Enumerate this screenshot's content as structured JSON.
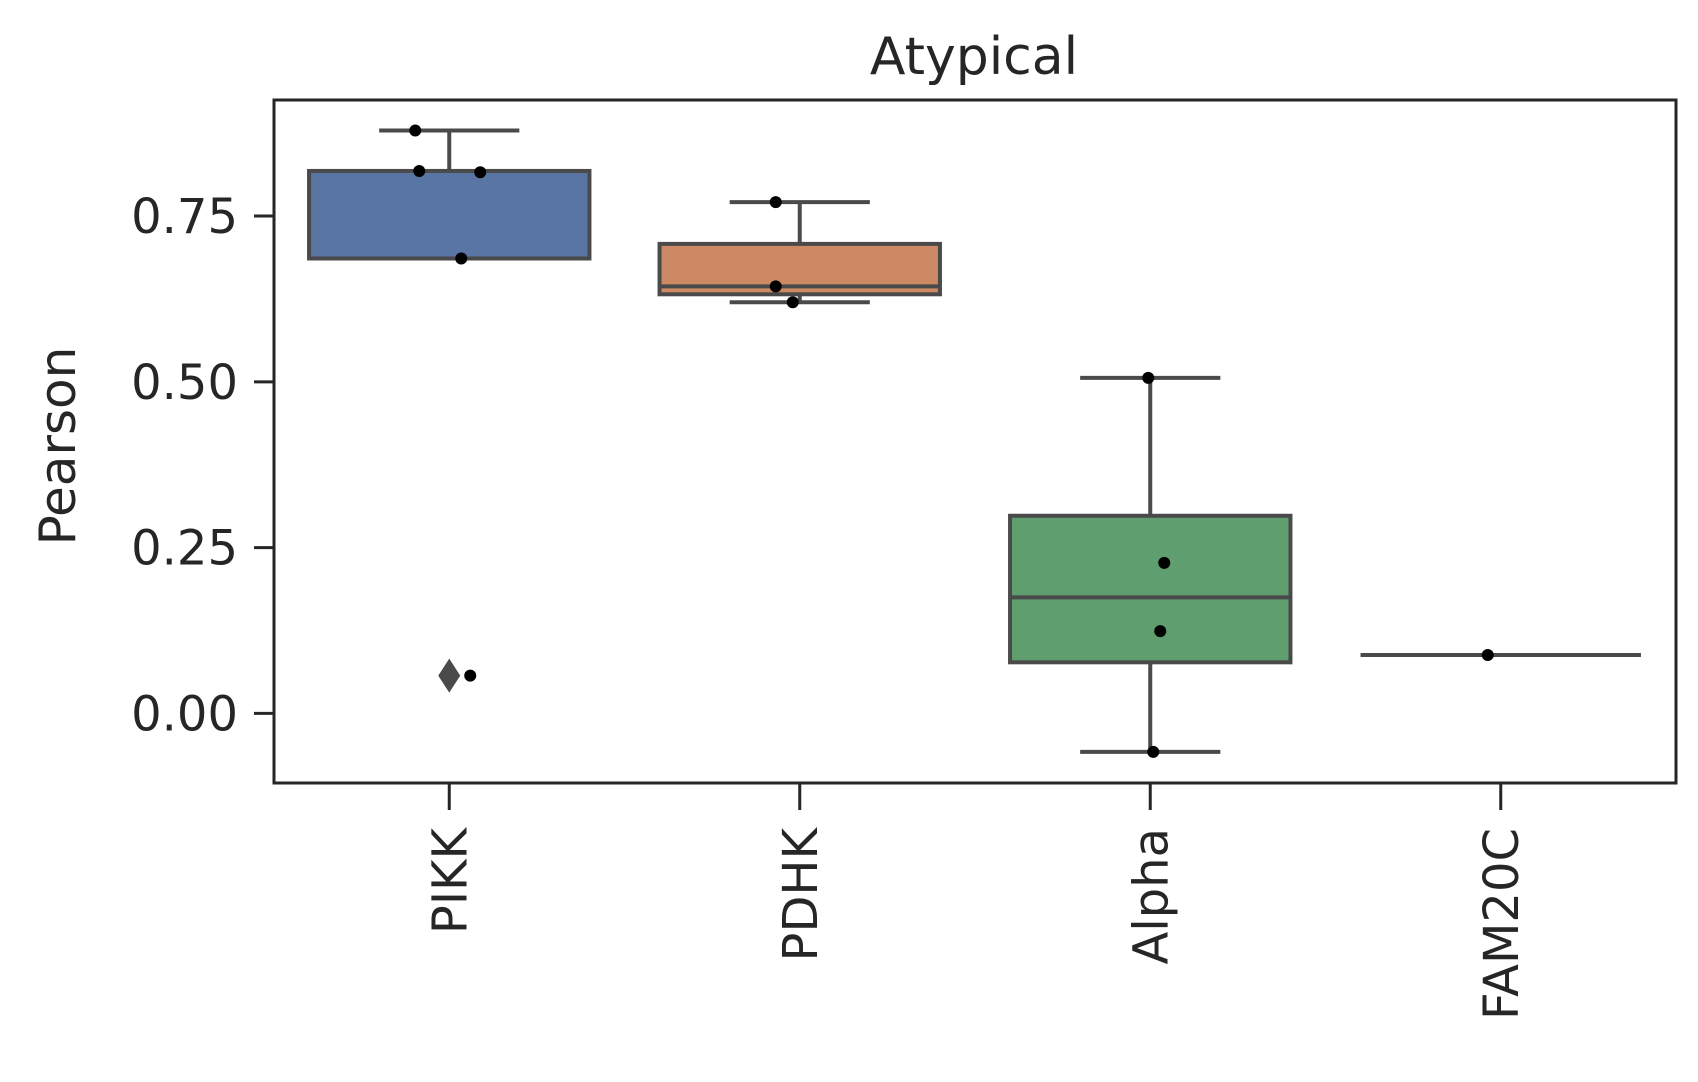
{
  "chart_data": {
    "type": "box",
    "title": "Atypical",
    "xlabel": "",
    "ylabel": "Pearson",
    "ylim": [
      -0.105,
      0.925
    ],
    "yticks": [
      0.0,
      0.25,
      0.5,
      0.75
    ],
    "ytick_labels": [
      "0.00",
      "0.25",
      "0.50",
      "0.75"
    ],
    "grid": false,
    "legend": "none",
    "categories": [
      "PIKK",
      "PDHK",
      "Alpha",
      "FAM20C"
    ],
    "boxes": [
      {
        "category": "PIKK",
        "color": "#5975a4",
        "q1": 0.686,
        "median": 0.686,
        "q3": 0.818,
        "whisker_low": 0.686,
        "whisker_high": 0.879,
        "outliers": [
          0.057
        ],
        "points": [
          0.879,
          0.818,
          0.816,
          0.686,
          0.057
        ]
      },
      {
        "category": "PDHK",
        "color": "#cc8963",
        "q1": 0.632,
        "median": 0.644,
        "q3": 0.708,
        "whisker_low": 0.62,
        "whisker_high": 0.771,
        "outliers": [],
        "points": [
          0.771,
          0.644,
          0.62
        ]
      },
      {
        "category": "Alpha",
        "color": "#5f9e6e",
        "q1": 0.077,
        "median": 0.175,
        "q3": 0.298,
        "whisker_low": -0.058,
        "whisker_high": 0.506,
        "outliers": [],
        "points": [
          0.506,
          0.227,
          0.124,
          -0.058
        ]
      },
      {
        "category": "FAM20C",
        "color": "#b55d60",
        "q1": 0.088,
        "median": 0.088,
        "q3": 0.088,
        "whisker_low": 0.088,
        "whisker_high": 0.088,
        "outliers": [],
        "points": [
          0.088
        ]
      }
    ]
  }
}
